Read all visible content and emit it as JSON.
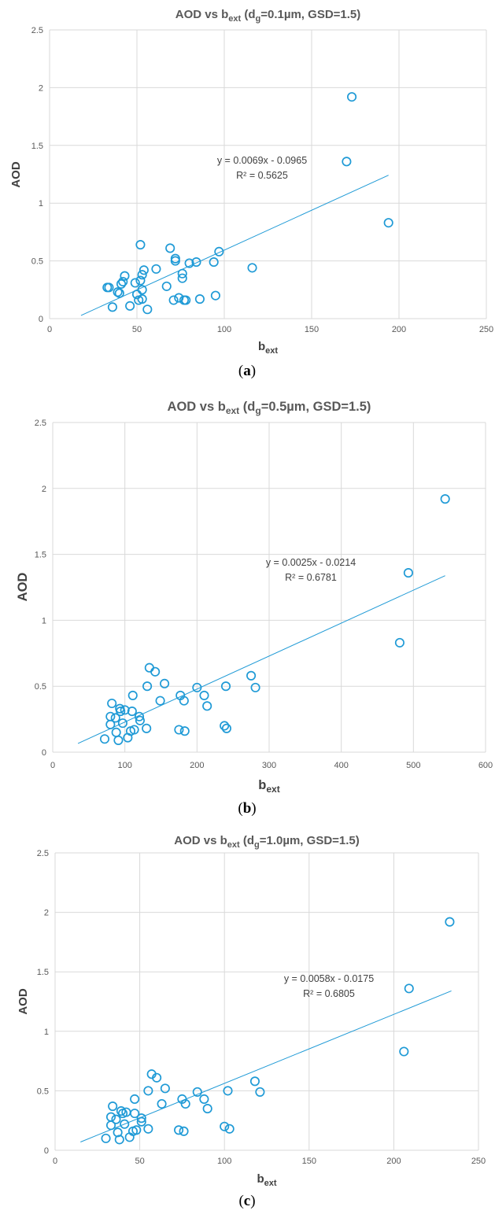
{
  "chart_data": [
    {
      "type": "scatter",
      "panel_label": "a",
      "title": {
        "prefix": "AOD vs b",
        "sub1": "ext",
        "mid": " (d",
        "sub2": "g",
        "suffix": "=0.1µm, GSD=1.5)"
      },
      "xlabel": {
        "base": "b",
        "sub": "ext"
      },
      "ylabel": "AOD",
      "xlim": [
        0,
        250
      ],
      "ylim": [
        0,
        2.5
      ],
      "xticks": [
        0,
        50,
        100,
        150,
        200,
        250
      ],
      "yticks": [
        0,
        0.5,
        1,
        1.5,
        2,
        2.5
      ],
      "ytick_labels": [
        "0",
        "0.5",
        "1",
        "1.5",
        "2",
        "2.5"
      ],
      "grid": true,
      "color": "#1f9ad6",
      "equation": "y = 0.0069x - 0.0965",
      "r2": "R² = 0.5625",
      "trendline": {
        "slope": 0.0069,
        "intercept": -0.0965,
        "x_range": [
          18,
          194
        ]
      },
      "points": [
        [
          33,
          0.27
        ],
        [
          34,
          0.27
        ],
        [
          36,
          0.1
        ],
        [
          39,
          0.23
        ],
        [
          40,
          0.22
        ],
        [
          41,
          0.3
        ],
        [
          42,
          0.32
        ],
        [
          43,
          0.37
        ],
        [
          46,
          0.11
        ],
        [
          49,
          0.31
        ],
        [
          50,
          0.21
        ],
        [
          51,
          0.16
        ],
        [
          52,
          0.64
        ],
        [
          52,
          0.33
        ],
        [
          53,
          0.38
        ],
        [
          54,
          0.42
        ],
        [
          53,
          0.25
        ],
        [
          53,
          0.17
        ],
        [
          56,
          0.08
        ],
        [
          61,
          0.43
        ],
        [
          67,
          0.28
        ],
        [
          69,
          0.61
        ],
        [
          71,
          0.16
        ],
        [
          72,
          0.52
        ],
        [
          72,
          0.5
        ],
        [
          74,
          0.18
        ],
        [
          76,
          0.35
        ],
        [
          76,
          0.39
        ],
        [
          77,
          0.16
        ],
        [
          78,
          0.16
        ],
        [
          80,
          0.48
        ],
        [
          84,
          0.49
        ],
        [
          86,
          0.17
        ],
        [
          94,
          0.49
        ],
        [
          95,
          0.2
        ],
        [
          97,
          0.58
        ],
        [
          116,
          0.44
        ],
        [
          170,
          1.36
        ],
        [
          173,
          1.92
        ],
        [
          194,
          0.83
        ]
      ]
    },
    {
      "type": "scatter",
      "panel_label": "b",
      "title": {
        "prefix": "AOD vs b",
        "sub1": "ext",
        "mid": " (d",
        "sub2": "g",
        "suffix": "=0.5µm, GSD=1.5)"
      },
      "xlabel": {
        "base": "b",
        "sub": "ext"
      },
      "ylabel": "AOD",
      "xlim": [
        0,
        600
      ],
      "ylim": [
        0,
        2.5
      ],
      "xticks": [
        0,
        100,
        200,
        300,
        400,
        500,
        600
      ],
      "yticks": [
        0,
        0.5,
        1,
        1.5,
        2,
        2.5
      ],
      "ytick_labels": [
        "0",
        "0.5",
        "1",
        "1.5",
        "2",
        "2.5"
      ],
      "grid": true,
      "color": "#1f9ad6",
      "equation": "y = 0.0025x - 0.0214",
      "r2": "R² = 0.6781",
      "trendline": {
        "slope": 0.0025,
        "intercept": -0.0214,
        "x_range": [
          35,
          544
        ]
      },
      "points": [
        [
          72,
          0.1
        ],
        [
          80,
          0.27
        ],
        [
          80,
          0.21
        ],
        [
          82,
          0.37
        ],
        [
          87,
          0.26
        ],
        [
          88,
          0.15
        ],
        [
          91,
          0.09
        ],
        [
          93,
          0.33
        ],
        [
          94,
          0.31
        ],
        [
          97,
          0.22
        ],
        [
          100,
          0.32
        ],
        [
          104,
          0.11
        ],
        [
          108,
          0.16
        ],
        [
          110,
          0.31
        ],
        [
          111,
          0.43
        ],
        [
          113,
          0.17
        ],
        [
          120,
          0.27
        ],
        [
          121,
          0.24
        ],
        [
          130,
          0.18
        ],
        [
          131,
          0.5
        ],
        [
          134,
          0.64
        ],
        [
          142,
          0.61
        ],
        [
          149,
          0.39
        ],
        [
          155,
          0.52
        ],
        [
          175,
          0.17
        ],
        [
          177,
          0.43
        ],
        [
          182,
          0.39
        ],
        [
          183,
          0.16
        ],
        [
          200,
          0.49
        ],
        [
          210,
          0.43
        ],
        [
          214,
          0.35
        ],
        [
          238,
          0.2
        ],
        [
          240,
          0.5
        ],
        [
          241,
          0.18
        ],
        [
          275,
          0.58
        ],
        [
          281,
          0.49
        ],
        [
          481,
          0.83
        ],
        [
          493,
          1.36
        ],
        [
          544,
          1.92
        ]
      ]
    },
    {
      "type": "scatter",
      "panel_label": "c",
      "title": {
        "prefix": "AOD vs b",
        "sub1": "ext",
        "mid": " (d",
        "sub2": "g",
        "suffix": "=1.0µm, GSD=1.5)"
      },
      "xlabel": {
        "base": "b",
        "sub": "ext"
      },
      "ylabel": "AOD",
      "xlim": [
        0,
        250
      ],
      "ylim": [
        0,
        2.5
      ],
      "xticks": [
        0,
        50,
        100,
        150,
        200,
        250
      ],
      "yticks": [
        0,
        0.5,
        1,
        1.5,
        2,
        2.5
      ],
      "ytick_labels": [
        "0",
        "0.5",
        "1",
        "1.5",
        "2",
        "2.5"
      ],
      "grid": true,
      "color": "#1f9ad6",
      "equation": "y = 0.0058x - 0.0175",
      "r2": "R² = 0.6805",
      "trendline": {
        "slope": 0.0058,
        "intercept": -0.0175,
        "x_range": [
          15,
          234
        ]
      },
      "points": [
        [
          30,
          0.1
        ],
        [
          33,
          0.28
        ],
        [
          33,
          0.21
        ],
        [
          34,
          0.37
        ],
        [
          36,
          0.26
        ],
        [
          37,
          0.15
        ],
        [
          38,
          0.09
        ],
        [
          39,
          0.33
        ],
        [
          40,
          0.31
        ],
        [
          41,
          0.22
        ],
        [
          42,
          0.32
        ],
        [
          44,
          0.11
        ],
        [
          46,
          0.16
        ],
        [
          47,
          0.31
        ],
        [
          47,
          0.43
        ],
        [
          48,
          0.17
        ],
        [
          51,
          0.27
        ],
        [
          51,
          0.24
        ],
        [
          55,
          0.18
        ],
        [
          55,
          0.5
        ],
        [
          57,
          0.64
        ],
        [
          60,
          0.61
        ],
        [
          63,
          0.39
        ],
        [
          65,
          0.52
        ],
        [
          73,
          0.17
        ],
        [
          75,
          0.43
        ],
        [
          77,
          0.39
        ],
        [
          76,
          0.16
        ],
        [
          84,
          0.49
        ],
        [
          88,
          0.43
        ],
        [
          90,
          0.35
        ],
        [
          100,
          0.2
        ],
        [
          102,
          0.5
        ],
        [
          103,
          0.18
        ],
        [
          118,
          0.58
        ],
        [
          121,
          0.49
        ],
        [
          206,
          0.83
        ],
        [
          209,
          1.36
        ],
        [
          233,
          1.92
        ]
      ]
    }
  ]
}
